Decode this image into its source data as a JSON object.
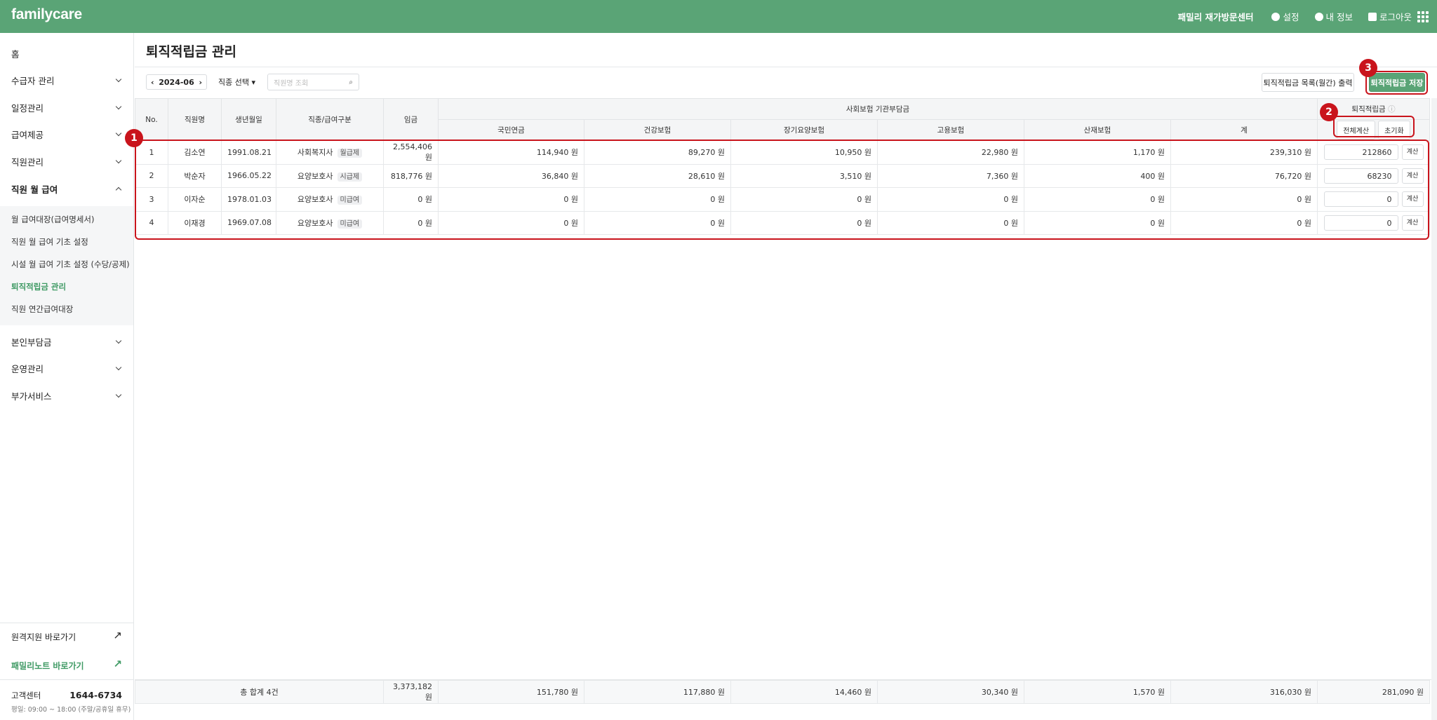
{
  "header": {
    "logo": "familycare",
    "center": "패밀리 재가방문센터",
    "links": [
      "설정",
      "내 정보",
      "로그아웃"
    ]
  },
  "sidebar": {
    "home": "홈",
    "groups_before": [
      "수급자 관리",
      "일정관리",
      "급여제공",
      "직원관리"
    ],
    "open_group": {
      "label": "직원 월 급여",
      "items": [
        "월 급여대장(급여명세서)",
        "직원 월 급여 기초 설정",
        "시설 월 급여 기초 설정 (수당/공제)",
        "퇴직적립금 관리",
        "직원 연간급여대장"
      ]
    },
    "groups_after": [
      "본인부담금",
      "운영관리",
      "부가서비스"
    ],
    "links": [
      "원격지원 바로가기",
      "패밀리노트 바로가기"
    ],
    "support": {
      "label": "고객센터",
      "phone": "1644-6734",
      "hours": "평일: 09:00 ~ 18:00 (주말/공휴일 휴무)"
    }
  },
  "page": {
    "title": "퇴직적립금 관리",
    "toolbar": {
      "month": "2024-06",
      "job_select": "직종 선택",
      "search_placeholder": "직원명 조회",
      "print_button": "퇴직적립금 목록(월간) 출력",
      "save_button": "퇴직적립금 저장"
    }
  },
  "table": {
    "headers": {
      "no": "No.",
      "name": "직원명",
      "birth": "생년월일",
      "job": "직종/급여구분",
      "wage": "임금",
      "insurance_group": "사회보험 기관부담금",
      "insurance": [
        "국민연금",
        "건강보험",
        "장기요양보험",
        "고용보험",
        "산재보험",
        "계"
      ],
      "retirement": "퇴직적립금",
      "calc_all": "전체계산",
      "reset": "초기화"
    },
    "rows": [
      {
        "no": "1",
        "name": "김소연",
        "birth": "1991.08.21",
        "job": "사회복지사",
        "pay_type": "월급제",
        "wage": "2,554,406 원",
        "insurance": [
          "114,940 원",
          "89,270 원",
          "10,950 원",
          "22,980 원",
          "1,170 원",
          "239,310 원"
        ],
        "retirement": "212860",
        "action": "계산"
      },
      {
        "no": "2",
        "name": "박순자",
        "birth": "1966.05.22",
        "job": "요양보호사",
        "pay_type": "시급제",
        "wage": "818,776 원",
        "insurance": [
          "36,840 원",
          "28,610 원",
          "3,510 원",
          "7,360 원",
          "400 원",
          "76,720 원"
        ],
        "retirement": "68230",
        "action": "계산"
      },
      {
        "no": "3",
        "name": "이자순",
        "birth": "1978.01.03",
        "job": "요양보호사",
        "pay_type": "미급여",
        "wage": "0 원",
        "insurance": [
          "0 원",
          "0 원",
          "0 원",
          "0 원",
          "0 원",
          "0 원"
        ],
        "retirement": "0",
        "action": "계산"
      },
      {
        "no": "4",
        "name": "이재경",
        "birth": "1969.07.08",
        "job": "요양보호사",
        "pay_type": "미급여",
        "wage": "0 원",
        "insurance": [
          "0 원",
          "0 원",
          "0 원",
          "0 원",
          "0 원",
          "0 원"
        ],
        "retirement": "0",
        "action": "계산"
      }
    ],
    "footer": {
      "label": "총 합계 4건",
      "wage": "3,373,182 원",
      "insurance": [
        "151,780 원",
        "117,880 원",
        "14,460 원",
        "30,340 원",
        "1,570 원",
        "316,030 원"
      ],
      "retirement": "281,090 원"
    }
  },
  "annotations": [
    "1",
    "2",
    "3"
  ]
}
